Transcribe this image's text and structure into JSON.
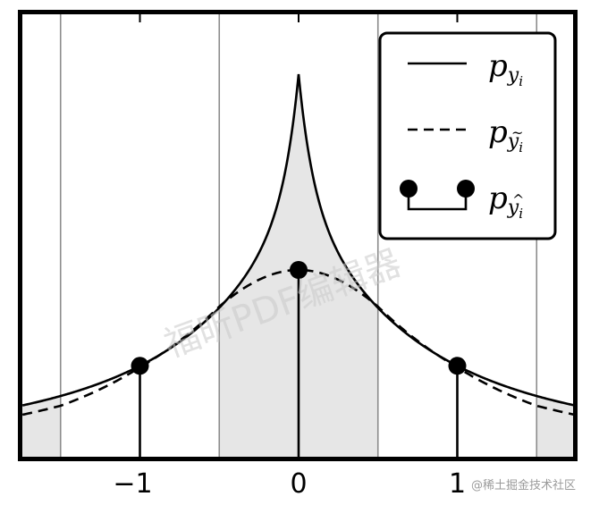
{
  "chart_data": {
    "type": "line",
    "title": "",
    "xlabel": "",
    "ylabel": "",
    "xlim": [
      -1.74,
      1.74
    ],
    "ylim": [
      0,
      1.0
    ],
    "grid": false,
    "x_ticks": [
      -1,
      0,
      1
    ],
    "x_tick_labels": [
      "−1",
      "0",
      "1"
    ],
    "bin_edges": [
      -1.5,
      -0.5,
      0.5,
      1.5
    ],
    "shaded_bins": [
      {
        "from": -1.74,
        "to": -1.5
      },
      {
        "from": -0.5,
        "to": 0.5
      },
      {
        "from": 1.5,
        "to": 1.74
      }
    ],
    "series": [
      {
        "name": "p_{y_i}",
        "style": "solid",
        "description": "Sharply peaked continuous density (cusp at 0)",
        "x": [
          -1.74,
          -1.5,
          -1.0,
          -0.5,
          -0.25,
          0.0,
          0.25,
          0.5,
          1.0,
          1.5,
          1.74
        ],
        "y": [
          0.096,
          0.112,
          0.19,
          0.366,
          0.56,
          0.86,
          0.56,
          0.366,
          0.19,
          0.112,
          0.096
        ]
      },
      {
        "name": "p_{ỹ_i}",
        "style": "dashed",
        "description": "Smoothed density",
        "x": [
          -1.74,
          -1.5,
          -1.0,
          -0.5,
          -0.25,
          0.0,
          0.25,
          0.5,
          1.0,
          1.5,
          1.74
        ],
        "y": [
          0.098,
          0.118,
          0.204,
          0.34,
          0.395,
          0.422,
          0.395,
          0.34,
          0.204,
          0.118,
          0.098
        ]
      },
      {
        "name": "p_{ŷ_i}",
        "style": "stem",
        "description": "Discrete probability mass at integers",
        "x": [
          -1,
          0,
          1
        ],
        "y": [
          0.19,
          0.422,
          0.19
        ]
      }
    ],
    "legend": {
      "position": "upper right",
      "entries": [
        "p_{y_i}",
        "p_{ỹ_i}",
        "p_{ŷ_i}"
      ]
    }
  },
  "legend": {
    "items": [
      {
        "symbol": "p",
        "sub": "y",
        "subsub": "i",
        "accent": ""
      },
      {
        "symbol": "p",
        "sub": "y",
        "subsub": "i",
        "accent": "~"
      },
      {
        "symbol": "p",
        "sub": "y",
        "subsub": "i",
        "accent": "^"
      }
    ]
  },
  "axis": {
    "ticks": [
      {
        "value": -1,
        "label": "−1"
      },
      {
        "value": 0,
        "label": "0"
      },
      {
        "value": 1,
        "label": "1"
      }
    ]
  },
  "watermarks": {
    "center": "福昕PDF编辑器",
    "credit": "@稀土掘金技术社区"
  },
  "colors": {
    "line": "#000000",
    "fill": "#e6e6e6",
    "bin_edge": "#8c8c8c",
    "background": "#ffffff"
  }
}
